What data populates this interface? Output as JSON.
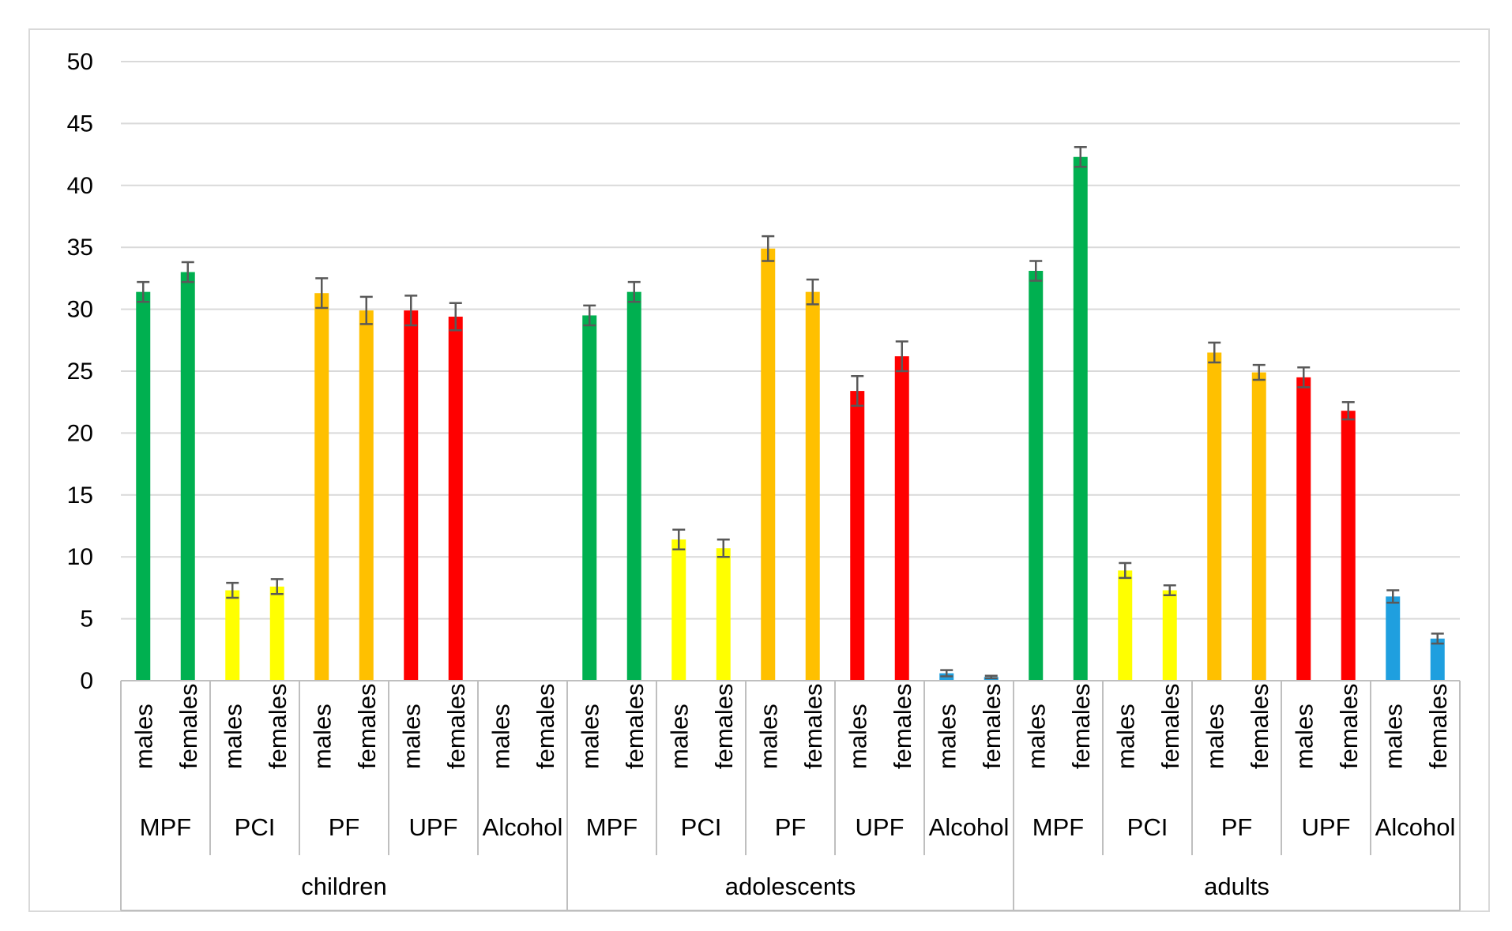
{
  "chart_data": {
    "type": "bar",
    "title": "",
    "xlabel": "",
    "ylabel": "",
    "ylim": [
      0,
      50
    ],
    "yticks": [
      0,
      5,
      10,
      15,
      20,
      25,
      30,
      35,
      40,
      45,
      50
    ],
    "grid": true,
    "legend": "none",
    "colors": {
      "MPF": "#00B050",
      "PCI": "#FFFF00",
      "PF": "#FFC000",
      "UPF": "#FF0000",
      "Alcohol": "#1F9FDF",
      "error_bar": "#595959",
      "gridline": "#D9D9D9",
      "axis": "#BFBFBF"
    },
    "groups": [
      {
        "label": "children",
        "categories": [
          {
            "label": "MPF",
            "bars": [
              {
                "sex": "males",
                "value": 31.4,
                "error": 0.8
              },
              {
                "sex": "females",
                "value": 33.0,
                "error": 0.8
              }
            ]
          },
          {
            "label": "PCI",
            "bars": [
              {
                "sex": "males",
                "value": 7.3,
                "error": 0.6
              },
              {
                "sex": "females",
                "value": 7.6,
                "error": 0.6
              }
            ]
          },
          {
            "label": "PF",
            "bars": [
              {
                "sex": "males",
                "value": 31.3,
                "error": 1.2
              },
              {
                "sex": "females",
                "value": 29.9,
                "error": 1.1
              }
            ]
          },
          {
            "label": "UPF",
            "bars": [
              {
                "sex": "males",
                "value": 29.9,
                "error": 1.2
              },
              {
                "sex": "females",
                "value": 29.4,
                "error": 1.1
              }
            ]
          },
          {
            "label": "Alcohol",
            "bars": [
              {
                "sex": "males",
                "value": 0,
                "error": 0
              },
              {
                "sex": "females",
                "value": 0,
                "error": 0
              }
            ]
          }
        ]
      },
      {
        "label": "adolescents",
        "categories": [
          {
            "label": "MPF",
            "bars": [
              {
                "sex": "males",
                "value": 29.5,
                "error": 0.8
              },
              {
                "sex": "females",
                "value": 31.4,
                "error": 0.8
              }
            ]
          },
          {
            "label": "PCI",
            "bars": [
              {
                "sex": "males",
                "value": 11.4,
                "error": 0.8
              },
              {
                "sex": "females",
                "value": 10.7,
                "error": 0.7
              }
            ]
          },
          {
            "label": "PF",
            "bars": [
              {
                "sex": "males",
                "value": 34.9,
                "error": 1.0
              },
              {
                "sex": "females",
                "value": 31.4,
                "error": 1.0
              }
            ]
          },
          {
            "label": "UPF",
            "bars": [
              {
                "sex": "males",
                "value": 23.4,
                "error": 1.2
              },
              {
                "sex": "females",
                "value": 26.2,
                "error": 1.2
              }
            ]
          },
          {
            "label": "Alcohol",
            "bars": [
              {
                "sex": "males",
                "value": 0.6,
                "error": 0.25
              },
              {
                "sex": "females",
                "value": 0.3,
                "error": 0.1
              }
            ]
          }
        ]
      },
      {
        "label": "adults",
        "categories": [
          {
            "label": "MPF",
            "bars": [
              {
                "sex": "males",
                "value": 33.1,
                "error": 0.8
              },
              {
                "sex": "females",
                "value": 42.3,
                "error": 0.8
              }
            ]
          },
          {
            "label": "PCI",
            "bars": [
              {
                "sex": "males",
                "value": 8.9,
                "error": 0.6
              },
              {
                "sex": "females",
                "value": 7.3,
                "error": 0.4
              }
            ]
          },
          {
            "label": "PF",
            "bars": [
              {
                "sex": "males",
                "value": 26.5,
                "error": 0.8
              },
              {
                "sex": "females",
                "value": 24.9,
                "error": 0.6
              }
            ]
          },
          {
            "label": "UPF",
            "bars": [
              {
                "sex": "males",
                "value": 24.5,
                "error": 0.8
              },
              {
                "sex": "females",
                "value": 21.8,
                "error": 0.7
              }
            ]
          },
          {
            "label": "Alcohol",
            "bars": [
              {
                "sex": "males",
                "value": 6.8,
                "error": 0.5
              },
              {
                "sex": "females",
                "value": 3.4,
                "error": 0.4
              }
            ]
          }
        ]
      }
    ]
  }
}
